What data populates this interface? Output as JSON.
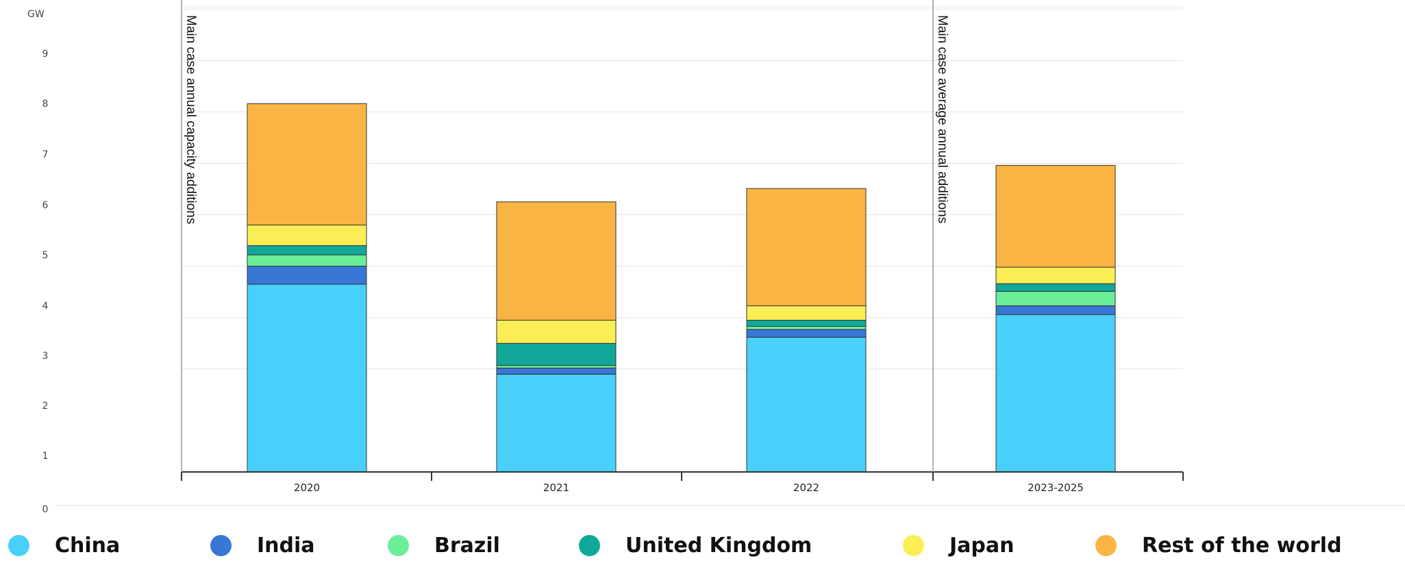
{
  "chart_data": {
    "type": "bar",
    "stacked": true,
    "title": "",
    "unit_label": "GW",
    "xlabel": "",
    "ylabel": "GW",
    "ylim": [
      0,
      9.5
    ],
    "y_ticks": [
      "0",
      "1",
      "2",
      "3",
      "4",
      "5",
      "6",
      "7",
      "8",
      "9"
    ],
    "categories": [
      "2020",
      "2021",
      "2022",
      "2023-2025"
    ],
    "series": [
      {
        "name": "China",
        "color": "#48d0fa",
        "values": [
          3.65,
          1.9,
          2.62,
          3.06
        ]
      },
      {
        "name": "India",
        "color": "#3877d6",
        "values": [
          0.35,
          0.12,
          0.15,
          0.17
        ]
      },
      {
        "name": "Brazil",
        "color": "#6cee99",
        "values": [
          0.22,
          0.05,
          0.06,
          0.28
        ]
      },
      {
        "name": "United Kingdom",
        "color": "#11a89a",
        "values": [
          0.18,
          0.43,
          0.12,
          0.15
        ]
      },
      {
        "name": "Japan",
        "color": "#fbee55",
        "values": [
          0.4,
          0.45,
          0.28,
          0.32
        ]
      },
      {
        "name": "Rest of the world",
        "color": "#fab443",
        "values": [
          2.36,
          2.3,
          2.28,
          1.98
        ]
      }
    ],
    "annotations": [
      "Main case annual capacity additions",
      "Main case average annual additions"
    ],
    "grid": true,
    "legend_position": "bottom"
  }
}
